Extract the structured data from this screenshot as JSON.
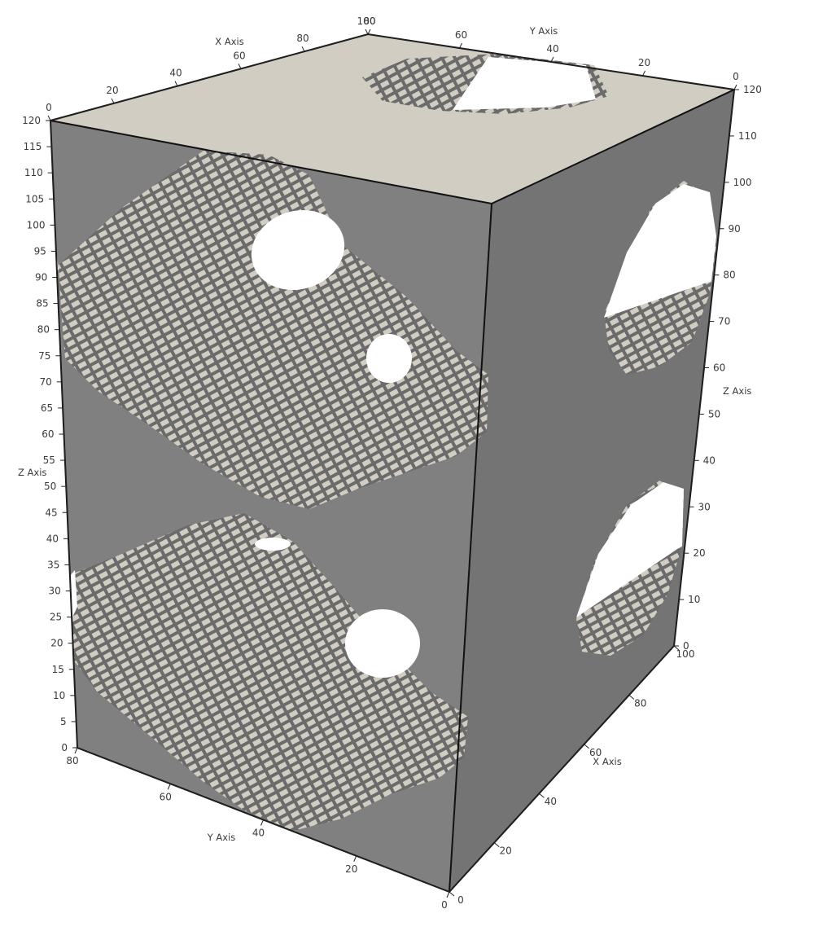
{
  "scene": {
    "colors": {
      "background": "#ffffff",
      "solid_front": "#808080",
      "solid_side": "#747474",
      "top_face": "#d2cdc2",
      "voxel_light": "#d2cdc2",
      "voxel_dark": "#6b6b6b",
      "edge": "#111111",
      "hole": "#ffffff"
    },
    "z_axis_left": {
      "title": "Z Axis",
      "ticks": [
        "0",
        "5",
        "10",
        "15",
        "20",
        "25",
        "30",
        "35",
        "40",
        "45",
        "50",
        "55",
        "60",
        "65",
        "70",
        "75",
        "80",
        "85",
        "90",
        "95",
        "100",
        "105",
        "110",
        "115",
        "120"
      ]
    },
    "z_axis_right": {
      "title": "Z Axis",
      "ticks": [
        "0",
        "10",
        "20",
        "30",
        "40",
        "50",
        "60",
        "70",
        "80",
        "90",
        "100",
        "110",
        "120"
      ]
    },
    "x_axis_top": {
      "title": "X Axis",
      "ticks": [
        "0",
        "20",
        "40",
        "60",
        "80",
        "100"
      ]
    },
    "y_axis_top": {
      "title": "Y Axis",
      "ticks": [
        "0",
        "20",
        "40",
        "60",
        "80"
      ]
    },
    "y_axis_bottom": {
      "title": "Y Axis",
      "ticks": [
        "0",
        "20",
        "40",
        "60",
        "80"
      ]
    },
    "x_axis_bottom": {
      "title": "X Axis",
      "ticks": [
        "0",
        "20",
        "40",
        "60",
        "80",
        "100"
      ]
    }
  }
}
